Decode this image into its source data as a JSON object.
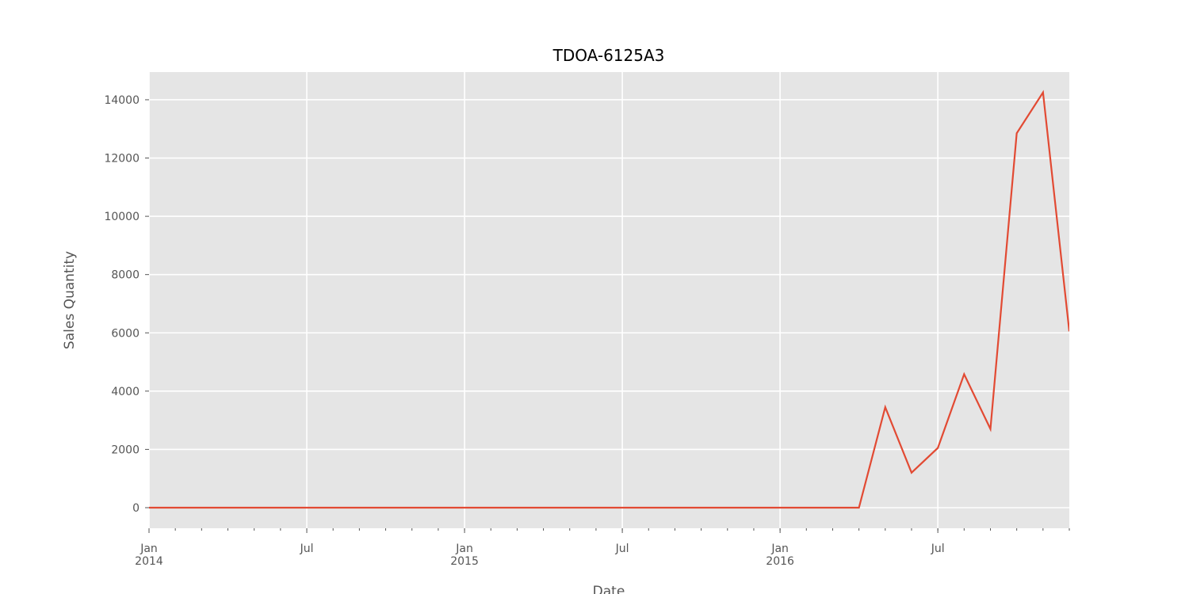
{
  "chart_data": {
    "type": "line",
    "title": "TDOA-6125A3",
    "xlabel": "Date",
    "ylabel": "Sales Quantity",
    "x": [
      "2014-01",
      "2014-02",
      "2014-03",
      "2014-04",
      "2014-05",
      "2014-06",
      "2014-07",
      "2014-08",
      "2014-09",
      "2014-10",
      "2014-11",
      "2014-12",
      "2015-01",
      "2015-02",
      "2015-03",
      "2015-04",
      "2015-05",
      "2015-06",
      "2015-07",
      "2015-08",
      "2015-09",
      "2015-10",
      "2015-11",
      "2015-12",
      "2016-01",
      "2016-02",
      "2016-03",
      "2016-04",
      "2016-05",
      "2016-06",
      "2016-07",
      "2016-08",
      "2016-09",
      "2016-10",
      "2016-11",
      "2016-12"
    ],
    "series": [
      {
        "name": "Sales Quantity",
        "color": "#e24a33",
        "values": [
          0,
          0,
          0,
          0,
          0,
          0,
          0,
          0,
          0,
          0,
          0,
          0,
          0,
          0,
          0,
          0,
          0,
          0,
          0,
          0,
          0,
          0,
          0,
          0,
          0,
          0,
          0,
          0,
          3450,
          1200,
          2050,
          4580,
          2700,
          12850,
          14250,
          6050
        ]
      }
    ],
    "xlim": [
      "2014-01",
      "2016-12"
    ],
    "xticks": [
      {
        "value": "2014-01",
        "label": "Jan\n2014"
      },
      {
        "value": "2014-07",
        "label": "Jul"
      },
      {
        "value": "2015-01",
        "label": "Jan\n2015"
      },
      {
        "value": "2015-07",
        "label": "Jul"
      },
      {
        "value": "2016-01",
        "label": "Jan\n2016"
      },
      {
        "value": "2016-07",
        "label": "Jul"
      }
    ],
    "ylim": [
      -707,
      14950
    ],
    "yticks": [
      0,
      2000,
      4000,
      6000,
      8000,
      10000,
      12000,
      14000
    ],
    "grid": true
  }
}
